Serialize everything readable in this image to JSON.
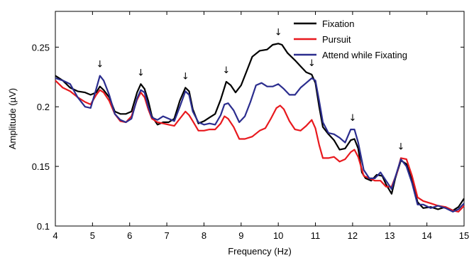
{
  "chart_data": {
    "type": "line",
    "xlabel": "Frequency (Hz)",
    "ylabel": "Amplitude (µV)",
    "xlim": [
      4,
      15
    ],
    "ylim": [
      0.1,
      0.28
    ],
    "x_ticks": [
      4,
      5,
      6,
      7,
      8,
      9,
      10,
      11,
      12,
      13,
      14,
      15
    ],
    "y_ticks": [
      0.1,
      0.15,
      0.2,
      0.25
    ],
    "y_tick_labels": [
      "0.1",
      "0.15",
      "0.2",
      "0.25"
    ],
    "grid": false,
    "legend_position": "top-right",
    "arrows_at": [
      5.2,
      6.3,
      7.5,
      8.6,
      10.0,
      10.9,
      12.0,
      13.3
    ],
    "arrow_glyph": "↓",
    "series": [
      {
        "name": "Fixation",
        "color": "#000000",
        "points": [
          [
            4.0,
            0.226
          ],
          [
            4.2,
            0.222
          ],
          [
            4.4,
            0.216
          ],
          [
            4.6,
            0.213
          ],
          [
            4.8,
            0.212
          ],
          [
            4.95,
            0.21
          ],
          [
            5.1,
            0.212
          ],
          [
            5.2,
            0.217
          ],
          [
            5.3,
            0.214
          ],
          [
            5.45,
            0.208
          ],
          [
            5.6,
            0.196
          ],
          [
            5.75,
            0.194
          ],
          [
            5.9,
            0.194
          ],
          [
            6.05,
            0.196
          ],
          [
            6.2,
            0.212
          ],
          [
            6.3,
            0.219
          ],
          [
            6.4,
            0.215
          ],
          [
            6.5,
            0.205
          ],
          [
            6.6,
            0.192
          ],
          [
            6.75,
            0.185
          ],
          [
            6.9,
            0.187
          ],
          [
            7.05,
            0.187
          ],
          [
            7.2,
            0.19
          ],
          [
            7.35,
            0.205
          ],
          [
            7.5,
            0.216
          ],
          [
            7.6,
            0.213
          ],
          [
            7.7,
            0.198
          ],
          [
            7.85,
            0.186
          ],
          [
            8.0,
            0.188
          ],
          [
            8.15,
            0.191
          ],
          [
            8.3,
            0.194
          ],
          [
            8.45,
            0.206
          ],
          [
            8.6,
            0.221
          ],
          [
            8.72,
            0.218
          ],
          [
            8.85,
            0.212
          ],
          [
            9.0,
            0.218
          ],
          [
            9.15,
            0.23
          ],
          [
            9.3,
            0.242
          ],
          [
            9.5,
            0.247
          ],
          [
            9.7,
            0.248
          ],
          [
            9.85,
            0.252
          ],
          [
            10.0,
            0.253
          ],
          [
            10.1,
            0.252
          ],
          [
            10.25,
            0.245
          ],
          [
            10.45,
            0.239
          ],
          [
            10.6,
            0.234
          ],
          [
            10.75,
            0.229
          ],
          [
            10.9,
            0.227
          ],
          [
            11.0,
            0.22
          ],
          [
            11.1,
            0.2
          ],
          [
            11.2,
            0.183
          ],
          [
            11.35,
            0.177
          ],
          [
            11.5,
            0.172
          ],
          [
            11.65,
            0.164
          ],
          [
            11.8,
            0.165
          ],
          [
            11.95,
            0.172
          ],
          [
            12.05,
            0.173
          ],
          [
            12.15,
            0.165
          ],
          [
            12.25,
            0.145
          ],
          [
            12.35,
            0.14
          ],
          [
            12.5,
            0.138
          ],
          [
            12.65,
            0.143
          ],
          [
            12.8,
            0.142
          ],
          [
            12.9,
            0.135
          ],
          [
            13.05,
            0.127
          ],
          [
            13.15,
            0.14
          ],
          [
            13.3,
            0.155
          ],
          [
            13.45,
            0.152
          ],
          [
            13.6,
            0.138
          ],
          [
            13.75,
            0.12
          ],
          [
            13.9,
            0.115
          ],
          [
            14.1,
            0.116
          ],
          [
            14.3,
            0.114
          ],
          [
            14.5,
            0.116
          ],
          [
            14.7,
            0.113
          ],
          [
            14.85,
            0.116
          ],
          [
            15.0,
            0.123
          ]
        ]
      },
      {
        "name": "Pursuit",
        "color": "#e8191e",
        "points": [
          [
            4.0,
            0.222
          ],
          [
            4.2,
            0.216
          ],
          [
            4.4,
            0.213
          ],
          [
            4.6,
            0.208
          ],
          [
            4.8,
            0.204
          ],
          [
            4.95,
            0.202
          ],
          [
            5.1,
            0.21
          ],
          [
            5.2,
            0.214
          ],
          [
            5.3,
            0.212
          ],
          [
            5.45,
            0.205
          ],
          [
            5.6,
            0.194
          ],
          [
            5.75,
            0.188
          ],
          [
            5.9,
            0.187
          ],
          [
            6.05,
            0.192
          ],
          [
            6.2,
            0.206
          ],
          [
            6.3,
            0.212
          ],
          [
            6.4,
            0.208
          ],
          [
            6.5,
            0.198
          ],
          [
            6.6,
            0.19
          ],
          [
            6.75,
            0.187
          ],
          [
            6.9,
            0.186
          ],
          [
            7.05,
            0.185
          ],
          [
            7.2,
            0.184
          ],
          [
            7.35,
            0.19
          ],
          [
            7.5,
            0.196
          ],
          [
            7.6,
            0.193
          ],
          [
            7.7,
            0.188
          ],
          [
            7.85,
            0.18
          ],
          [
            8.0,
            0.18
          ],
          [
            8.15,
            0.181
          ],
          [
            8.3,
            0.181
          ],
          [
            8.45,
            0.186
          ],
          [
            8.55,
            0.192
          ],
          [
            8.65,
            0.19
          ],
          [
            8.8,
            0.183
          ],
          [
            8.95,
            0.173
          ],
          [
            9.1,
            0.173
          ],
          [
            9.3,
            0.175
          ],
          [
            9.5,
            0.18
          ],
          [
            9.65,
            0.182
          ],
          [
            9.8,
            0.19
          ],
          [
            9.95,
            0.199
          ],
          [
            10.05,
            0.201
          ],
          [
            10.15,
            0.198
          ],
          [
            10.3,
            0.188
          ],
          [
            10.45,
            0.181
          ],
          [
            10.6,
            0.18
          ],
          [
            10.75,
            0.184
          ],
          [
            10.9,
            0.189
          ],
          [
            11.0,
            0.182
          ],
          [
            11.1,
            0.168
          ],
          [
            11.2,
            0.157
          ],
          [
            11.35,
            0.157
          ],
          [
            11.5,
            0.158
          ],
          [
            11.65,
            0.154
          ],
          [
            11.8,
            0.156
          ],
          [
            11.95,
            0.162
          ],
          [
            12.05,
            0.164
          ],
          [
            12.15,
            0.158
          ],
          [
            12.3,
            0.142
          ],
          [
            12.45,
            0.14
          ],
          [
            12.6,
            0.138
          ],
          [
            12.75,
            0.138
          ],
          [
            12.9,
            0.133
          ],
          [
            13.05,
            0.133
          ],
          [
            13.2,
            0.145
          ],
          [
            13.3,
            0.157
          ],
          [
            13.45,
            0.156
          ],
          [
            13.6,
            0.142
          ],
          [
            13.75,
            0.124
          ],
          [
            13.9,
            0.121
          ],
          [
            14.1,
            0.119
          ],
          [
            14.3,
            0.117
          ],
          [
            14.5,
            0.116
          ],
          [
            14.7,
            0.113
          ],
          [
            14.85,
            0.112
          ],
          [
            15.0,
            0.117
          ]
        ]
      },
      {
        "name": "Attend while Fixating",
        "color": "#2b2d8e",
        "points": [
          [
            4.0,
            0.224
          ],
          [
            4.2,
            0.222
          ],
          [
            4.4,
            0.219
          ],
          [
            4.6,
            0.208
          ],
          [
            4.8,
            0.2
          ],
          [
            4.95,
            0.199
          ],
          [
            5.1,
            0.215
          ],
          [
            5.2,
            0.226
          ],
          [
            5.3,
            0.222
          ],
          [
            5.45,
            0.21
          ],
          [
            5.6,
            0.194
          ],
          [
            5.75,
            0.189
          ],
          [
            5.9,
            0.187
          ],
          [
            6.05,
            0.19
          ],
          [
            6.2,
            0.207
          ],
          [
            6.3,
            0.214
          ],
          [
            6.4,
            0.212
          ],
          [
            6.5,
            0.2
          ],
          [
            6.6,
            0.191
          ],
          [
            6.75,
            0.189
          ],
          [
            6.9,
            0.192
          ],
          [
            7.05,
            0.19
          ],
          [
            7.2,
            0.188
          ],
          [
            7.35,
            0.2
          ],
          [
            7.5,
            0.213
          ],
          [
            7.6,
            0.21
          ],
          [
            7.7,
            0.196
          ],
          [
            7.85,
            0.187
          ],
          [
            8.0,
            0.185
          ],
          [
            8.15,
            0.186
          ],
          [
            8.3,
            0.185
          ],
          [
            8.45,
            0.193
          ],
          [
            8.55,
            0.202
          ],
          [
            8.65,
            0.203
          ],
          [
            8.8,
            0.197
          ],
          [
            8.95,
            0.187
          ],
          [
            9.1,
            0.192
          ],
          [
            9.25,
            0.204
          ],
          [
            9.4,
            0.218
          ],
          [
            9.55,
            0.22
          ],
          [
            9.7,
            0.217
          ],
          [
            9.85,
            0.217
          ],
          [
            10.0,
            0.219
          ],
          [
            10.15,
            0.215
          ],
          [
            10.3,
            0.21
          ],
          [
            10.45,
            0.21
          ],
          [
            10.6,
            0.216
          ],
          [
            10.75,
            0.22
          ],
          [
            10.9,
            0.224
          ],
          [
            11.0,
            0.222
          ],
          [
            11.1,
            0.205
          ],
          [
            11.2,
            0.187
          ],
          [
            11.35,
            0.178
          ],
          [
            11.5,
            0.177
          ],
          [
            11.65,
            0.174
          ],
          [
            11.8,
            0.17
          ],
          [
            11.95,
            0.181
          ],
          [
            12.05,
            0.181
          ],
          [
            12.15,
            0.17
          ],
          [
            12.3,
            0.147
          ],
          [
            12.45,
            0.14
          ],
          [
            12.6,
            0.14
          ],
          [
            12.75,
            0.145
          ],
          [
            12.9,
            0.138
          ],
          [
            13.05,
            0.131
          ],
          [
            13.2,
            0.146
          ],
          [
            13.3,
            0.156
          ],
          [
            13.45,
            0.15
          ],
          [
            13.6,
            0.136
          ],
          [
            13.75,
            0.118
          ],
          [
            13.9,
            0.118
          ],
          [
            14.1,
            0.115
          ],
          [
            14.3,
            0.117
          ],
          [
            14.5,
            0.115
          ],
          [
            14.7,
            0.112
          ],
          [
            14.85,
            0.114
          ],
          [
            15.0,
            0.119
          ]
        ]
      }
    ]
  }
}
